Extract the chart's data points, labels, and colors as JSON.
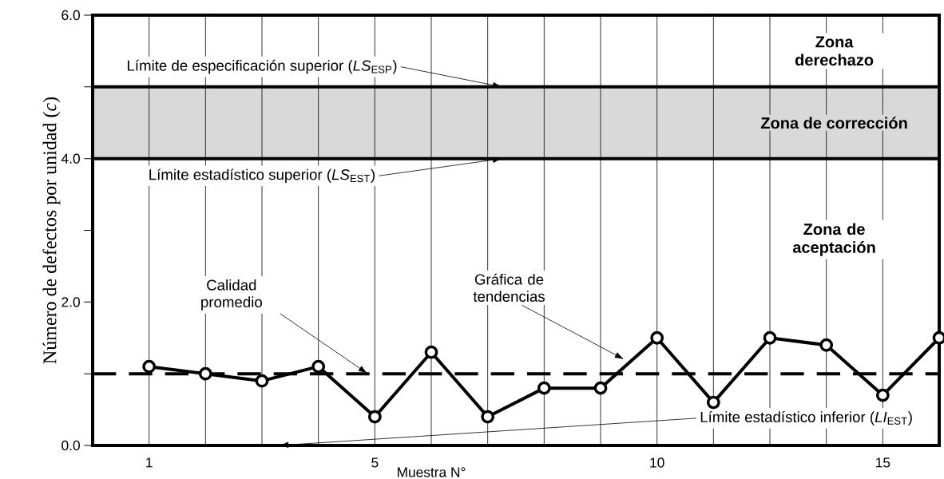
{
  "chart_data": {
    "type": "line",
    "xlabel": "Muestra N°",
    "ylabel": "Número de defectos por unidad (*c*)",
    "categories": [
      "1",
      null,
      null,
      null,
      "5",
      null,
      null,
      null,
      null,
      "10",
      null,
      null,
      null,
      "15",
      null
    ],
    "values": [
      1.1,
      1.0,
      0.9,
      1.1,
      0.4,
      1.3,
      0.4,
      0.8,
      0.8,
      1.5,
      0.6,
      1.5,
      1.4,
      0.7,
      1.5
    ],
    "color": "#000000",
    "marker": "circle",
    "line_style": "solid",
    "ylim": [
      0,
      6
    ],
    "yticks": [
      {
        "value": 0,
        "label": "0.0"
      },
      {
        "value": 1,
        "label": null
      },
      {
        "value": 2,
        "label": "2.0"
      },
      {
        "value": 3,
        "label": null
      },
      {
        "value": 4,
        "label": "4.0"
      },
      {
        "value": 5,
        "label": null
      },
      {
        "value": 6,
        "label": "6.0"
      }
    ],
    "grid": "x",
    "ref_lines": [
      {
        "axis": "y",
        "value": 5,
        "label": "Límite de especificación superior (*LS*$_{ESP}$)",
        "color": "#000000",
        "line_style": "solid"
      },
      {
        "axis": "y",
        "value": 4,
        "label": "Límite estadístico superior (*LS*$_{EST}$)",
        "color": "#000000",
        "line_style": "solid"
      },
      {
        "axis": "y",
        "value": 1.0,
        "label": "Calidad promedio",
        "color": "#000000",
        "line_style": "dashed"
      }
    ],
    "bands": [
      {
        "axis": "y",
        "from": 4,
        "to": 5,
        "label": "Zona de corrección",
        "color": "#d9d9d9"
      }
    ],
    "annotations": [
      "Zona derechazo",
      "Zona de aceptación",
      "Gráfica de tendencias",
      "Límite estadístico inferior (*LI*$_{EST}$)"
    ]
  }
}
